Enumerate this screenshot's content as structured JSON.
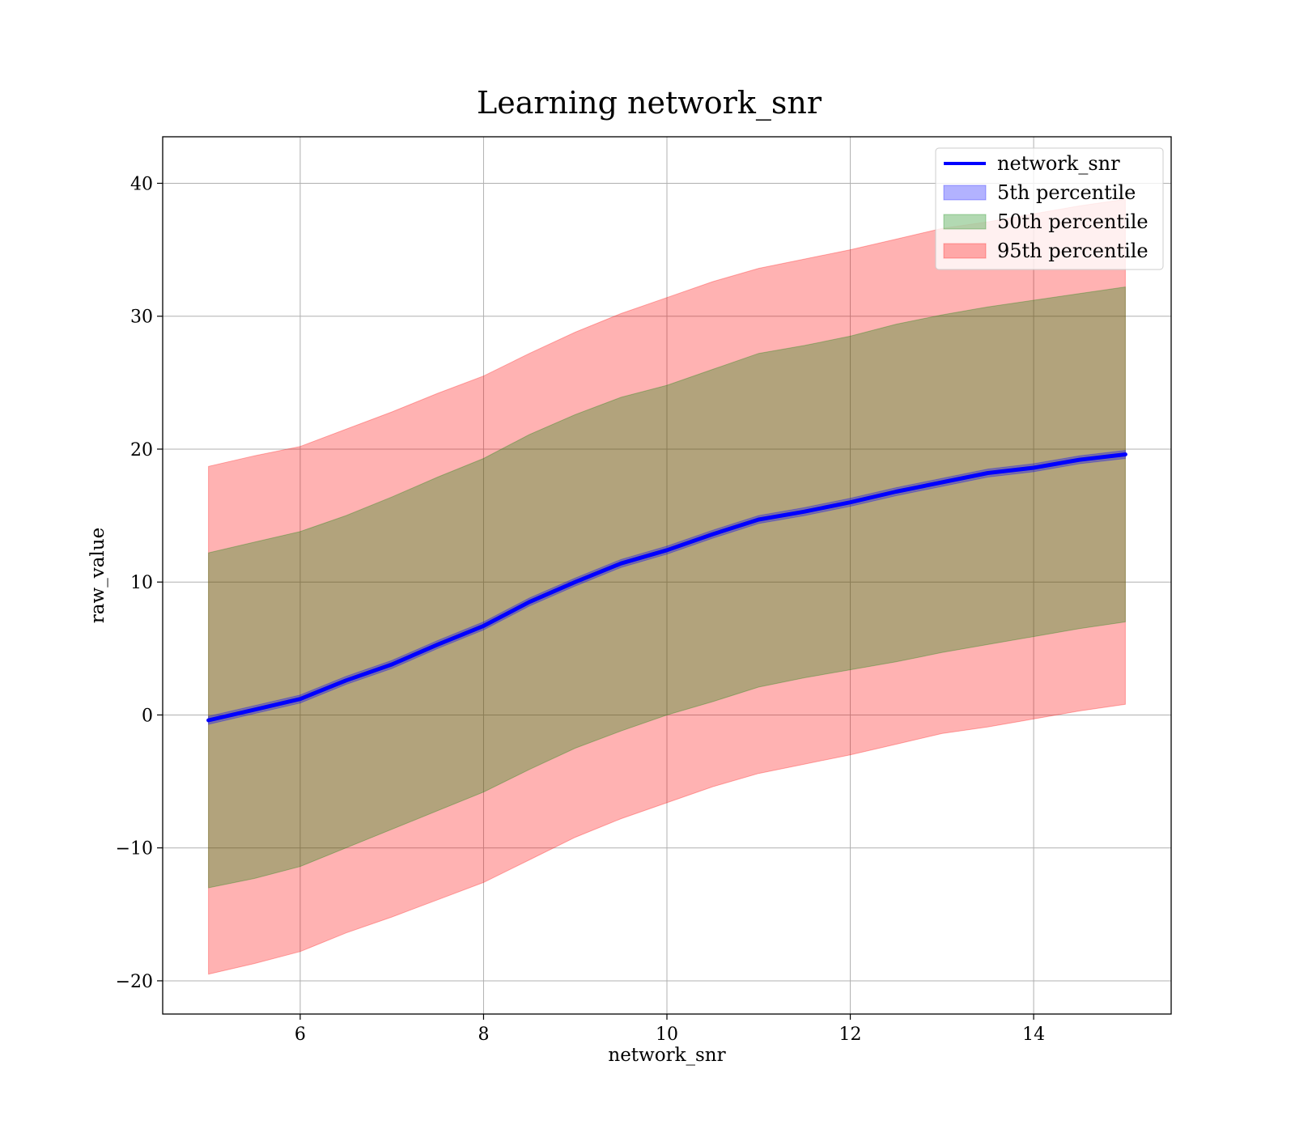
{
  "chart_data": {
    "type": "area",
    "title": "Learning network_snr",
    "xlabel": "network_snr",
    "ylabel": "raw_value",
    "xlim": [
      4.5,
      15.5
    ],
    "ylim": [
      -22.5,
      43.5
    ],
    "xticks": [
      6,
      8,
      10,
      12,
      14
    ],
    "xtick_labels": [
      "6",
      "8",
      "10",
      "12",
      "14"
    ],
    "yticks": [
      -20,
      -10,
      0,
      10,
      20,
      30,
      40
    ],
    "ytick_labels": [
      "−20",
      "−10",
      "0",
      "10",
      "20",
      "30",
      "40"
    ],
    "grid": true,
    "legend_position": "top-right",
    "x": [
      5,
      5.5,
      6,
      6.5,
      7,
      7.5,
      8,
      8.5,
      9,
      9.5,
      10,
      10.5,
      11,
      11.5,
      12,
      12.5,
      13,
      13.5,
      14,
      14.5,
      15
    ],
    "series": [
      {
        "name": "network_snr",
        "kind": "line",
        "color": "#0000ff",
        "values": [
          -0.4,
          0.4,
          1.2,
          2.6,
          3.8,
          5.3,
          6.7,
          8.5,
          10.0,
          11.4,
          12.4,
          13.6,
          14.7,
          15.3,
          16.0,
          16.8,
          17.5,
          18.2,
          18.6,
          19.2,
          19.6
        ]
      },
      {
        "name": "5th percentile",
        "kind": "band",
        "color": "#0000ff",
        "lower": [
          -0.7,
          0.1,
          0.9,
          2.3,
          3.5,
          5.0,
          6.4,
          8.2,
          9.7,
          11.1,
          12.1,
          13.3,
          14.4,
          15.0,
          15.7,
          16.5,
          17.2,
          17.9,
          18.3,
          18.9,
          19.3
        ],
        "upper": [
          -0.1,
          0.7,
          1.5,
          2.9,
          4.1,
          5.6,
          7.0,
          8.8,
          10.3,
          11.7,
          12.7,
          13.9,
          15.0,
          15.6,
          16.3,
          17.1,
          17.8,
          18.5,
          18.9,
          19.5,
          19.9
        ]
      },
      {
        "name": "50th percentile",
        "kind": "band",
        "color": "#008000",
        "lower": [
          -13.0,
          -12.3,
          -11.4,
          -10.0,
          -8.6,
          -7.2,
          -5.8,
          -4.1,
          -2.5,
          -1.2,
          0.0,
          1.0,
          2.1,
          2.8,
          3.4,
          4.0,
          4.7,
          5.3,
          5.9,
          6.5,
          7.0
        ],
        "upper": [
          12.2,
          13.0,
          13.8,
          15.0,
          16.4,
          17.9,
          19.3,
          21.1,
          22.6,
          23.9,
          24.8,
          26.0,
          27.2,
          27.8,
          28.5,
          29.4,
          30.1,
          30.7,
          31.2,
          31.7,
          32.2
        ]
      },
      {
        "name": "95th percentile",
        "kind": "band",
        "color": "#ff0000",
        "lower": [
          -19.5,
          -18.7,
          -17.8,
          -16.4,
          -15.2,
          -13.9,
          -12.6,
          -10.9,
          -9.2,
          -7.8,
          -6.6,
          -5.4,
          -4.4,
          -3.7,
          -3.0,
          -2.2,
          -1.4,
          -0.9,
          -0.3,
          0.3,
          0.8
        ],
        "upper": [
          18.7,
          19.5,
          20.2,
          21.5,
          22.8,
          24.2,
          25.5,
          27.2,
          28.8,
          30.2,
          31.4,
          32.6,
          33.6,
          34.3,
          35.0,
          35.8,
          36.6,
          37.1,
          37.7,
          38.3,
          38.8
        ]
      }
    ]
  }
}
